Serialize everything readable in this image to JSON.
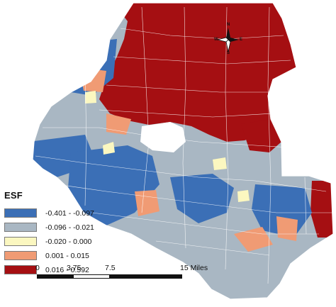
{
  "legend": {
    "title": "ESF",
    "classes": [
      {
        "label": "-0.401 - -0.097",
        "color": "#3b6fb6"
      },
      {
        "label": "-0.096 - -0.021",
        "color": "#a9b7c3"
      },
      {
        "label": "-0.020 - 0.000",
        "color": "#fbf7c0"
      },
      {
        "label": "0.001 - 0.015",
        "color": "#f09b74"
      },
      {
        "label": "0.016 - 0.592",
        "color": "#a50f12"
      }
    ]
  },
  "scale_bar": {
    "ticks": [
      "0",
      "3.75",
      "7.5",
      "15 Miles"
    ]
  },
  "north_arrow": {
    "n": "N",
    "s": "S",
    "e": "E",
    "w": "W"
  },
  "background": "#ffffff",
  "boundary_color": "#ffffff"
}
